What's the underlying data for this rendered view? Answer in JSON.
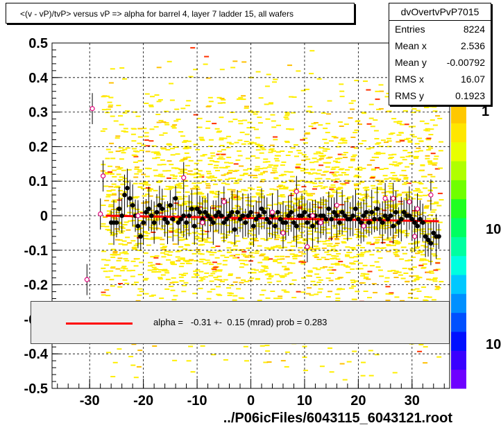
{
  "title": "<(v - vP)/tvP> versus   vP => alpha for barrel 4, layer 7 ladder 15, all wafers",
  "stats": {
    "name": "dvOvertvPvP7015",
    "rows": [
      {
        "label": "Entries",
        "value": "8224"
      },
      {
        "label": "Mean x",
        "value": "2.536"
      },
      {
        "label": "Mean y",
        "value": "-0.00792"
      },
      {
        "label": "RMS x",
        "value": "16.07"
      },
      {
        "label": "RMS y",
        "value": "0.1923"
      }
    ]
  },
  "fit_legend": "alpha =   -0.31 +-  0.15 (mrad) prob = 0.283",
  "x_axis_label": "../P06icFiles/6043115_6043121.root",
  "z_axis_labels": [
    "1",
    "10",
    "10"
  ],
  "colors": {
    "fit_line": "#ff0000",
    "profile_marker": "#000000",
    "open_marker": "#e0007a",
    "background": "#ffffff"
  },
  "chart_data": {
    "type": "scatter",
    "xlim": [
      -37,
      37
    ],
    "ylim": [
      -0.5,
      0.5
    ],
    "xticks": [
      -30,
      -20,
      -10,
      0,
      10,
      20,
      30
    ],
    "yticks": [
      0.5,
      0.4,
      0.3,
      0.2,
      0.1,
      0,
      -0.1,
      -0.2,
      -0.3,
      -0.4,
      -0.5
    ],
    "grid": true,
    "fit": {
      "x": [
        -27,
        35
      ],
      "y": [
        0.0,
        -0.016
      ]
    },
    "profile": {
      "x": [
        -26,
        -25.5,
        -25,
        -24.5,
        -24,
        -23.5,
        -23,
        -22.5,
        -22,
        -21.5,
        -21,
        -20.5,
        -20,
        -19.5,
        -19,
        -18.5,
        -18,
        -17.5,
        -17,
        -16.5,
        -16,
        -15.5,
        -15,
        -14.5,
        -14,
        -13.5,
        -13,
        -12.5,
        -12,
        -11.5,
        -11,
        -10.5,
        -10,
        -9.5,
        -9,
        -8.5,
        -8,
        -7.5,
        -7,
        -6.5,
        -6,
        -5.5,
        -5,
        -4.5,
        -4,
        -3.5,
        -3,
        -2.5,
        -2,
        -1.5,
        -1,
        -0.5,
        0,
        0.5,
        1,
        1.5,
        2,
        2.5,
        3,
        3.5,
        4,
        4.5,
        5,
        5.5,
        6,
        6.5,
        7,
        7.5,
        8,
        8.5,
        9,
        9.5,
        10,
        10.5,
        11,
        11.5,
        12,
        12.5,
        13,
        13.5,
        14,
        14.5,
        15,
        15.5,
        16,
        16.5,
        17,
        17.5,
        18,
        18.5,
        19,
        19.5,
        20,
        20.5,
        21,
        21.5,
        22,
        22.5,
        23,
        23.5,
        24,
        24.5,
        25,
        25.5,
        26,
        26.5,
        27,
        27.5,
        28,
        28.5,
        29,
        29.5,
        30,
        30.5,
        31,
        31.5,
        32,
        32.5,
        33,
        33.5,
        34,
        34.5,
        35
      ],
      "y": [
        -0.02,
        -0.02,
        -0.02,
        0.02,
        0.0,
        0.06,
        0.08,
        0.05,
        0.03,
        0.0,
        -0.03,
        -0.06,
        -0.02,
        0.01,
        0.02,
        0.0,
        -0.02,
        0.01,
        0.03,
        0.02,
        -0.01,
        -0.02,
        0.03,
        -0.01,
        0.05,
        -0.02,
        -0.01,
        0.0,
        -0.02,
        0.0,
        0.02,
        -0.03,
        0.02,
        0.01,
        -0.01,
        0.01,
        0.0,
        -0.01,
        -0.02,
        0.0,
        0.01,
        0.0,
        -0.02,
        -0.01,
        0.0,
        0.01,
        -0.04,
        0.01,
        -0.01,
        0.0,
        -0.02,
        0.0,
        0.01,
        -0.03,
        -0.01,
        0.0,
        0.02,
        0.01,
        -0.01,
        -0.02,
        0.0,
        -0.03,
        0.01,
        -0.01,
        -0.02,
        -0.02,
        0.0,
        0.01,
        -0.02,
        -0.03,
        0.0,
        0.0,
        0.01,
        -0.02,
        0.0,
        -0.03,
        0.0,
        -0.02,
        0.0,
        0.0,
        -0.01,
        0.02,
        -0.01,
        0.01,
        0.0,
        -0.02,
        0.01,
        0.0,
        -0.01,
        -0.01,
        0.0,
        0.02,
        -0.01,
        -0.02,
        0.0,
        0.01,
        -0.02,
        0.01,
        -0.01,
        0.02,
        -0.01,
        -0.02,
        0.0,
        -0.01,
        0.0,
        -0.03,
        0.01,
        -0.02,
        -0.01,
        0.01,
        0.0,
        0.0,
        -0.01,
        -0.02,
        -0.03,
        -0.01,
        -0.02,
        -0.06,
        -0.07,
        -0.08,
        -0.05,
        -0.06,
        -0.06
      ]
    },
    "open_points": {
      "x": [
        -30.5,
        -29.5,
        -28,
        -27.5,
        -21,
        -12.5,
        -9,
        -5,
        4,
        6,
        8.5,
        10.5,
        11.5,
        13,
        16,
        21,
        25,
        26.5,
        29.5,
        30.5,
        31,
        33.5
      ],
      "y": [
        -0.185,
        0.31,
        0.005,
        0.115,
        0.0,
        0.11,
        -0.02,
        0.04,
        0.01,
        -0.05,
        0.07,
        -0.09,
        0.0,
        -0.02,
        0.03,
        -0.03,
        0.05,
        0.05,
        0.04,
        -0.06,
        0.02,
        0.06
      ]
    },
    "x_label": "../P06icFiles/6043115_6043121.root"
  }
}
